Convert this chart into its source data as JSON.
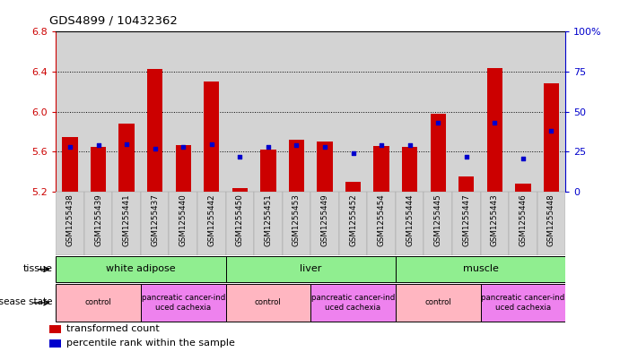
{
  "title": "GDS4899 / 10432362",
  "samples": [
    "GSM1255438",
    "GSM1255439",
    "GSM1255441",
    "GSM1255437",
    "GSM1255440",
    "GSM1255442",
    "GSM1255450",
    "GSM1255451",
    "GSM1255453",
    "GSM1255449",
    "GSM1255452",
    "GSM1255454",
    "GSM1255444",
    "GSM1255445",
    "GSM1255447",
    "GSM1255443",
    "GSM1255446",
    "GSM1255448"
  ],
  "red_values": [
    5.75,
    5.65,
    5.88,
    6.43,
    5.67,
    6.3,
    5.24,
    5.62,
    5.72,
    5.7,
    5.3,
    5.66,
    5.65,
    5.98,
    5.35,
    6.44,
    5.28,
    6.28
  ],
  "blue_values": [
    28,
    29,
    30,
    27,
    28,
    30,
    22,
    28,
    29,
    28,
    24,
    29,
    29,
    43,
    22,
    43,
    21,
    38
  ],
  "ymin": 5.2,
  "ymax": 6.8,
  "yticks": [
    5.2,
    5.6,
    6.0,
    6.4,
    6.8
  ],
  "right_yticks": [
    0,
    25,
    50,
    75,
    100
  ],
  "tissue_groups": [
    {
      "label": "white adipose",
      "start": 0,
      "end": 6
    },
    {
      "label": "liver",
      "start": 6,
      "end": 12
    },
    {
      "label": "muscle",
      "start": 12,
      "end": 18
    }
  ],
  "disease_groups": [
    {
      "label": "control",
      "start": 0,
      "end": 3,
      "type": "control"
    },
    {
      "label": "pancreatic cancer-ind\nuced cachexia",
      "start": 3,
      "end": 6,
      "type": "cancer"
    },
    {
      "label": "control",
      "start": 6,
      "end": 9,
      "type": "control"
    },
    {
      "label": "pancreatic cancer-ind\nuced cachexia",
      "start": 9,
      "end": 12,
      "type": "cancer"
    },
    {
      "label": "control",
      "start": 12,
      "end": 15,
      "type": "control"
    },
    {
      "label": "pancreatic cancer-ind\nuced cachexia",
      "start": 15,
      "end": 18,
      "type": "cancer"
    }
  ],
  "bar_color": "#cc0000",
  "dot_color": "#0000cc",
  "tissue_color": "#90ee90",
  "control_color": "#ffb6c1",
  "cancer_color": "#ee82ee",
  "tick_bg_color": "#d3d3d3",
  "bg_color": "#ffffff",
  "left_tick_color": "#cc0000",
  "right_tick_color": "#0000cc"
}
